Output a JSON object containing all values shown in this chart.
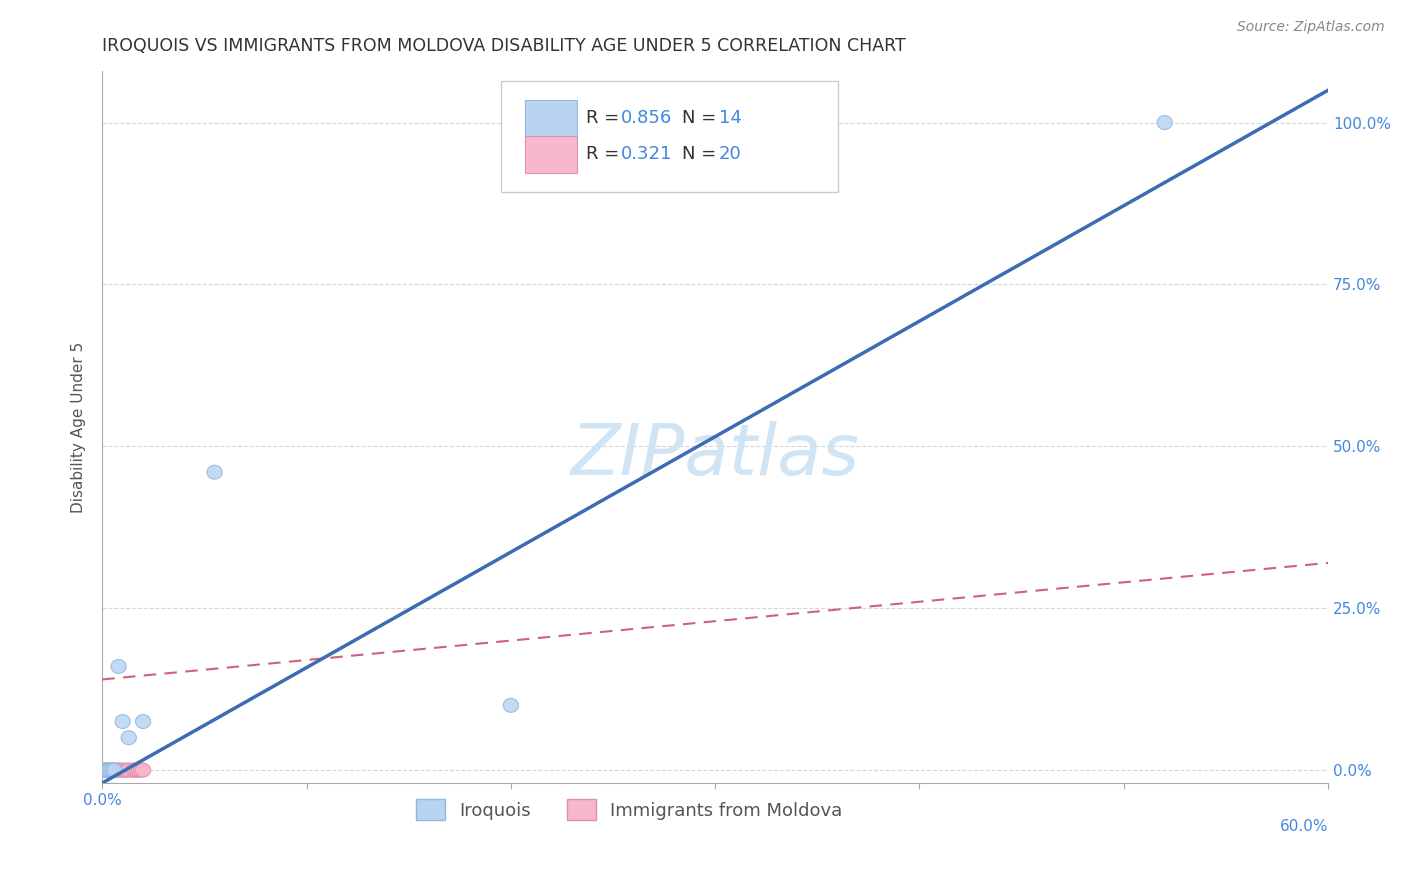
{
  "title": "IROQUOIS VS IMMIGRANTS FROM MOLDOVA DISABILITY AGE UNDER 5 CORRELATION CHART",
  "source": "Source: ZipAtlas.com",
  "ylabel": "Disability Age Under 5",
  "watermark": "ZIPatlas",
  "iroquois_R": 0.856,
  "iroquois_N": 14,
  "moldova_R": 0.321,
  "moldova_N": 20,
  "iroquois_color": "#b8d4f0",
  "iroquois_edge_color": "#90b8e0",
  "iroquois_line_color": "#3d6cb5",
  "moldova_color": "#f8b8cc",
  "moldova_edge_color": "#e090a8",
  "moldova_line_color": "#d06080",
  "background_color": "#ffffff",
  "grid_color": "#cccccc",
  "xlim": [
    0.0,
    0.6
  ],
  "ylim": [
    -0.02,
    1.08
  ],
  "yticks": [
    0.0,
    0.25,
    0.5,
    0.75,
    1.0
  ],
  "ytick_labels": [
    "0.0%",
    "25.0%",
    "50.0%",
    "75.0%",
    "100.0%"
  ],
  "xtick_positions": [
    0.0,
    0.1,
    0.2,
    0.3,
    0.4,
    0.5,
    0.6
  ],
  "iroquois_points_x": [
    0.001,
    0.002,
    0.003,
    0.003,
    0.004,
    0.005,
    0.006,
    0.008,
    0.01,
    0.013,
    0.02,
    0.055,
    0.2,
    0.52
  ],
  "iroquois_points_y": [
    0.0,
    0.0,
    0.0,
    0.0,
    0.0,
    0.0,
    0.0,
    0.16,
    0.075,
    0.05,
    0.075,
    0.46,
    0.1,
    1.0
  ],
  "moldova_points_x": [
    0.001,
    0.002,
    0.003,
    0.004,
    0.005,
    0.006,
    0.006,
    0.007,
    0.008,
    0.009,
    0.01,
    0.011,
    0.012,
    0.013,
    0.015,
    0.016,
    0.017,
    0.018,
    0.019,
    0.02
  ],
  "moldova_points_y": [
    0.0,
    0.0,
    0.0,
    0.0,
    0.0,
    0.0,
    0.0,
    0.0,
    0.0,
    0.0,
    0.0,
    0.0,
    0.0,
    0.0,
    0.0,
    0.0,
    0.0,
    0.0,
    0.0,
    0.0
  ],
  "iroquois_line_x0": 0.0,
  "iroquois_line_y0": -0.02,
  "iroquois_line_x1": 0.6,
  "iroquois_line_y1": 1.05,
  "moldova_line_x0": 0.0,
  "moldova_line_y0": 0.14,
  "moldova_line_x1": 0.6,
  "moldova_line_y1": 0.32,
  "title_fontsize": 12.5,
  "axis_label_fontsize": 11,
  "tick_fontsize": 11,
  "legend_fontsize": 13,
  "source_fontsize": 10,
  "watermark_fontsize": 52,
  "watermark_color": "#d0e4f4",
  "tick_color": "#4488dd"
}
